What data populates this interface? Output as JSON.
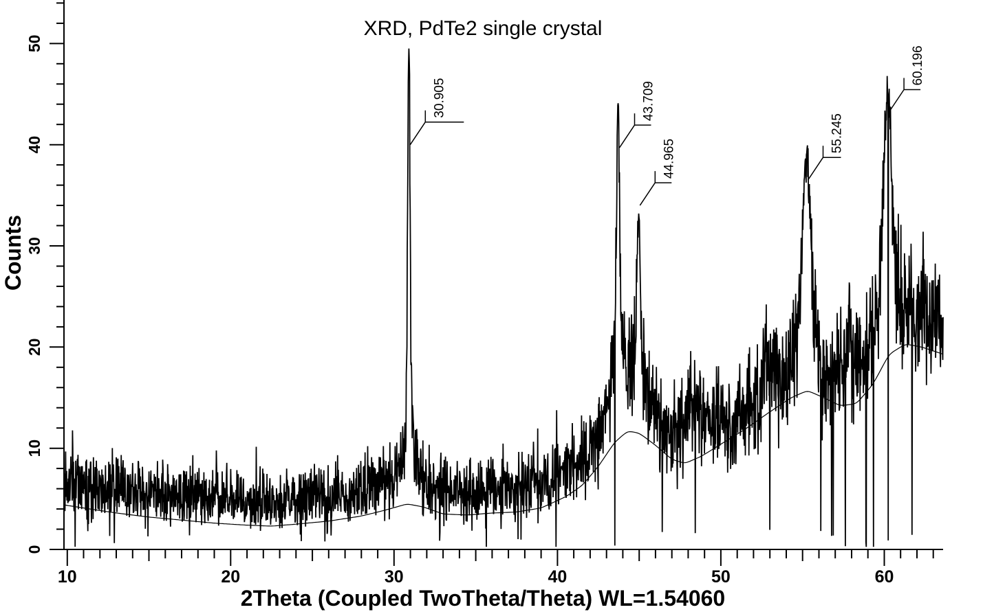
{
  "chart": {
    "title": "XRD, PdTe2 single crystal",
    "x_axis": {
      "label": "2Theta (Coupled TwoTheta/Theta) WL=1.54060",
      "range": [
        9.8,
        63.6
      ],
      "major_ticks": [
        20,
        30,
        40,
        50,
        60
      ],
      "medium_tick_step": 5,
      "minor_tick_step": 1
    },
    "y_axis": {
      "label": "Counts",
      "range": [
        0,
        54.3
      ],
      "major_ticks": [
        0,
        10,
        20,
        30,
        40,
        50
      ],
      "minor_tick_step": 2
    },
    "colors": {
      "foreground": "#000000",
      "background": "#ffffff"
    },
    "peak_annotations": [
      {
        "label": "30.905",
        "two_theta": 30.905,
        "anchor_count": 40.0
      },
      {
        "label": "43.709",
        "two_theta": 43.709,
        "anchor_count": 39.7
      },
      {
        "label": "44.965",
        "two_theta": 44.965,
        "anchor_count": 34.0
      },
      {
        "label": "55.245",
        "two_theta": 55.245,
        "anchor_count": 36.5
      },
      {
        "label": "60.196",
        "two_theta": 60.196,
        "anchor_count": 43.2
      }
    ]
  },
  "chart_data": {
    "type": "line",
    "title": "XRD, PdTe2 single crystal",
    "xlabel": "2Theta (Coupled TwoTheta/Theta) WL=1.54060",
    "ylabel": "Counts",
    "xlim": [
      9.8,
      63.6
    ],
    "ylim": [
      0,
      54.3
    ],
    "grid": false,
    "legend": "none",
    "peaks": [
      {
        "two_theta": 30.905,
        "tip_counts": 49.5,
        "sigma": 0.075,
        "base_amp": 6,
        "base_sigma": 0.3
      },
      {
        "two_theta": 43.709,
        "tip_counts": 44.1,
        "sigma": 0.1,
        "base_amp": 7,
        "base_sigma": 0.45
      },
      {
        "two_theta": 44.965,
        "tip_counts": 33.2,
        "sigma": 0.1,
        "base_amp": 5,
        "base_sigma": 0.4
      },
      {
        "two_theta": 55.245,
        "tip_counts": 39.0,
        "sigma": 0.22,
        "base_amp": 5,
        "base_sigma": 0.55
      },
      {
        "two_theta": 60.196,
        "tip_counts": 45.3,
        "sigma": 0.24,
        "base_amp": 5,
        "base_sigma": 0.6
      }
    ],
    "minor_bumps": [
      {
        "two_theta": 48.3,
        "amp": 3.5,
        "sigma": 0.4
      },
      {
        "two_theta": 53.0,
        "amp": 3.0,
        "sigma": 0.35
      },
      {
        "two_theta": 57.9,
        "amp": 3.0,
        "sigma": 0.5
      }
    ],
    "background_profile": [
      [
        9.8,
        4.4
      ],
      [
        11,
        4.1
      ],
      [
        13,
        3.6
      ],
      [
        15,
        3.2
      ],
      [
        17,
        2.9
      ],
      [
        19,
        2.6
      ],
      [
        21,
        2.4
      ],
      [
        22.5,
        2.3
      ],
      [
        24,
        2.5
      ],
      [
        26,
        2.8
      ],
      [
        28,
        3.3
      ],
      [
        29.5,
        3.9
      ],
      [
        30.8,
        4.5
      ],
      [
        31.8,
        4.2
      ],
      [
        33,
        3.5
      ],
      [
        34.5,
        3.4
      ],
      [
        36,
        3.6
      ],
      [
        37.5,
        3.7
      ],
      [
        39,
        4.1
      ],
      [
        40.5,
        5.2
      ],
      [
        41.5,
        6.3
      ],
      [
        42.5,
        8.2
      ],
      [
        43.5,
        10.6
      ],
      [
        44.3,
        11.7
      ],
      [
        45,
        11.5
      ],
      [
        46,
        10.3
      ],
      [
        47,
        8.9
      ],
      [
        47.8,
        8.5
      ],
      [
        48.8,
        9.2
      ],
      [
        50,
        10.4
      ],
      [
        51.5,
        11.9
      ],
      [
        53,
        13.6
      ],
      [
        54.3,
        15.0
      ],
      [
        55.3,
        15.7
      ],
      [
        56.3,
        15.0
      ],
      [
        57.3,
        14.2
      ],
      [
        58.3,
        14.4
      ],
      [
        59.3,
        16.3
      ],
      [
        60.3,
        19.3
      ],
      [
        61.3,
        20.3
      ],
      [
        62.3,
        20.0
      ],
      [
        63.6,
        19.3
      ]
    ],
    "noise": {
      "seed": 11,
      "points": 2690,
      "floor_offset": 2.3,
      "poisson_scale": 1.9,
      "core_damping": 0.68,
      "spike_probability": 0.05,
      "spike_max": 4.5,
      "dropout_probability": 0.01,
      "clamp": [
        0.25,
        53.2
      ]
    }
  }
}
